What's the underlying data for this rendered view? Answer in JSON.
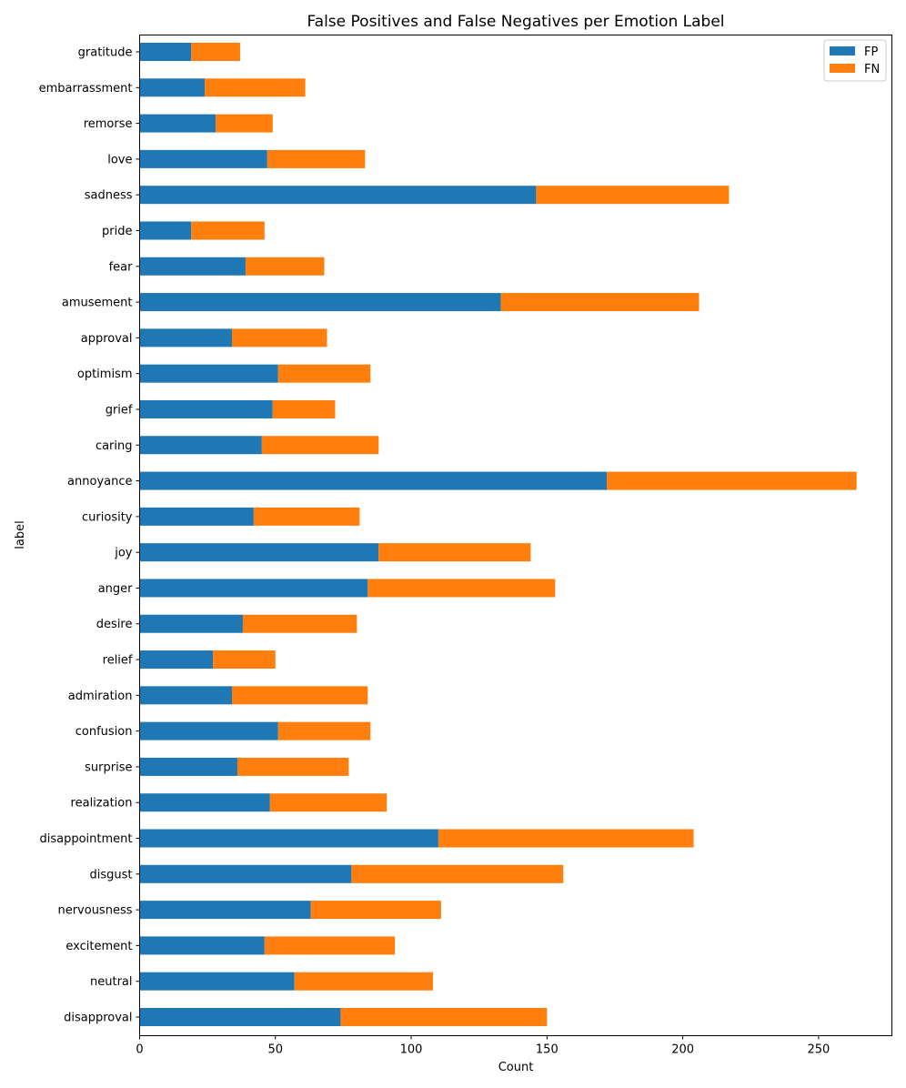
{
  "chart_data": {
    "type": "bar",
    "orientation": "horizontal",
    "stacked": true,
    "title": "False Positives and False Negatives per Emotion Label",
    "xlabel": "Count",
    "ylabel": "label",
    "xlim": [
      0,
      277
    ],
    "xticks": [
      0,
      50,
      100,
      150,
      200,
      250
    ],
    "grid": false,
    "legend_position": "top-right",
    "categories": [
      "gratitude",
      "embarrassment",
      "remorse",
      "love",
      "sadness",
      "pride",
      "fear",
      "amusement",
      "approval",
      "optimism",
      "grief",
      "caring",
      "annoyance",
      "curiosity",
      "joy",
      "anger",
      "desire",
      "relief",
      "admiration",
      "confusion",
      "surprise",
      "realization",
      "disappointment",
      "disgust",
      "nervousness",
      "excitement",
      "neutral",
      "disapproval"
    ],
    "series": [
      {
        "name": "FP",
        "color": "#1f77b4",
        "values": [
          19,
          24,
          28,
          47,
          146,
          19,
          39,
          133,
          34,
          51,
          49,
          45,
          172,
          42,
          88,
          84,
          38,
          27,
          34,
          51,
          36,
          48,
          110,
          78,
          63,
          46,
          57,
          74
        ]
      },
      {
        "name": "FN",
        "color": "#ff7f0e",
        "values": [
          18,
          37,
          21,
          36,
          71,
          27,
          29,
          73,
          35,
          34,
          23,
          43,
          92,
          39,
          56,
          69,
          42,
          23,
          50,
          34,
          41,
          43,
          94,
          78,
          48,
          48,
          51,
          76
        ]
      }
    ]
  }
}
